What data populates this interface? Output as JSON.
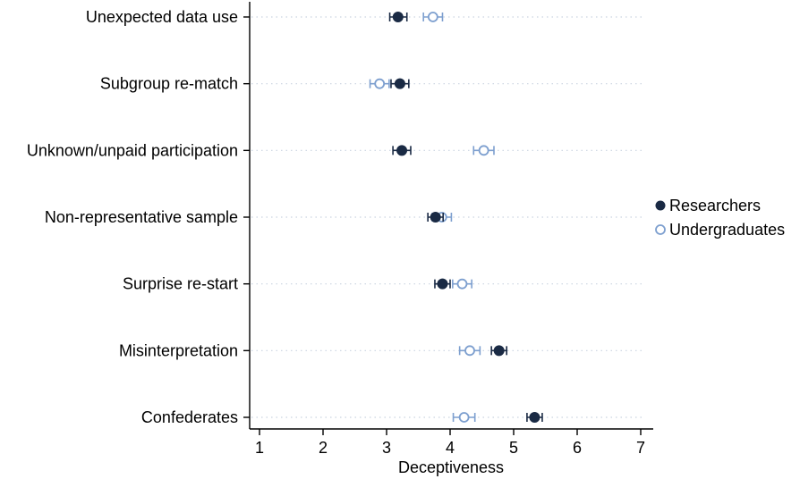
{
  "chart_data": {
    "type": "scatter",
    "title": "",
    "xlabel": "Deceptiveness",
    "ylabel": "",
    "xlim": [
      0.85,
      7.2
    ],
    "xticks": [
      1,
      2,
      3,
      4,
      5,
      6,
      7
    ],
    "grid": "horizontal dotted",
    "legend": "right",
    "categories": [
      "Unexpected data use",
      "Subgroup re-match",
      "Unknown/unpaid participation",
      "Non-representative sample",
      "Surprise re-start",
      "Misinterpretation",
      "Confederates"
    ],
    "series": [
      {
        "name": "Researchers",
        "marker": "filled-circle",
        "color": "#1a2a44",
        "values": [
          3.18,
          3.21,
          3.24,
          3.77,
          3.88,
          4.77,
          5.33
        ],
        "ci": [
          [
            3.05,
            3.32
          ],
          [
            3.07,
            3.35
          ],
          [
            3.1,
            3.38
          ],
          [
            3.65,
            3.89
          ],
          [
            3.76,
            4.0
          ],
          [
            4.65,
            4.89
          ],
          [
            5.21,
            5.45
          ]
        ]
      },
      {
        "name": "Undergraduates",
        "marker": "hollow-circle",
        "color": "#7d9fcf",
        "values": [
          3.73,
          2.89,
          4.53,
          3.87,
          4.19,
          4.31,
          4.22
        ],
        "ci": [
          [
            3.58,
            3.88
          ],
          [
            2.74,
            3.04
          ],
          [
            4.37,
            4.69
          ],
          [
            3.72,
            4.02
          ],
          [
            4.04,
            4.34
          ],
          [
            4.15,
            4.47
          ],
          [
            4.05,
            4.39
          ]
        ]
      }
    ]
  }
}
